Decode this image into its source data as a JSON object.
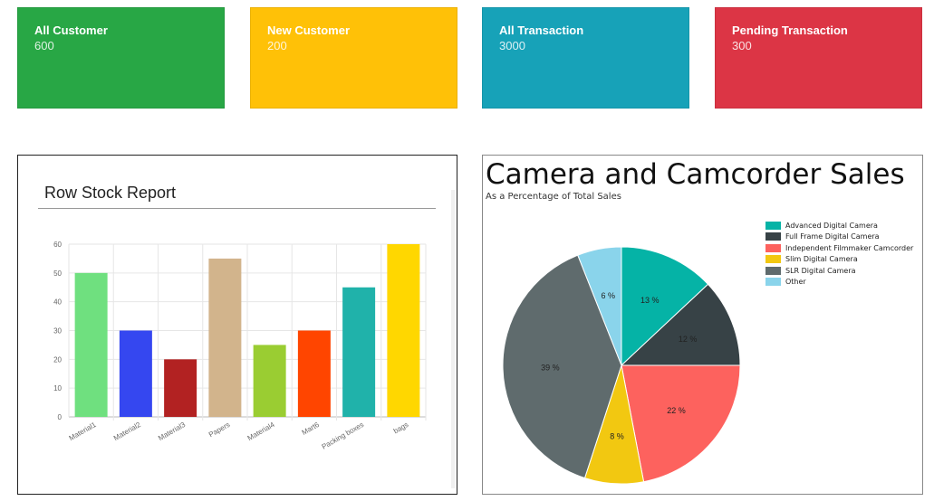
{
  "stats": [
    {
      "title": "All Customer",
      "value": "600",
      "color": "#28a745"
    },
    {
      "title": "New Customer",
      "value": "200",
      "color": "#ffc107"
    },
    {
      "title": "All Transaction",
      "value": "3000",
      "color": "#17a2b8"
    },
    {
      "title": "Pending Transaction",
      "value": "300",
      "color": "#dc3545"
    }
  ],
  "stock_report": {
    "title": "Row Stock Report"
  },
  "pie_section": {
    "title": "Camera and Camcorder Sales",
    "subtitle": "As a Percentage of Total Sales"
  },
  "chart_data": [
    {
      "type": "bar",
      "title": "Row Stock Report",
      "categories": [
        "Material1",
        "Material2",
        "Material3",
        "Papers",
        "Material4",
        "Mart6",
        "Packing boxes",
        "bags"
      ],
      "values": [
        50,
        30,
        20,
        55,
        25,
        30,
        45,
        60
      ],
      "colors": [
        "#6fe07f",
        "#3547f0",
        "#b22222",
        "#d2b48c",
        "#9acd32",
        "#ff4500",
        "#20b2aa",
        "#ffd700"
      ],
      "ylim": [
        0,
        60
      ],
      "yticks": [
        "0",
        "10",
        "20",
        "30",
        "40",
        "50",
        "60"
      ],
      "grid": true
    },
    {
      "type": "pie",
      "title": "Camera and Camcorder Sales",
      "subtitle": "As a Percentage of Total Sales",
      "legend": "right",
      "slices": [
        {
          "label": "Advanced Digital Camera",
          "value": 13,
          "display": "13 %",
          "color": "#05b3a6"
        },
        {
          "label": "Full Frame Digital Camera",
          "value": 12,
          "display": "12 %",
          "color": "#374246"
        },
        {
          "label": "Independent Filmmaker Camcorder",
          "value": 22,
          "display": "22 %",
          "color": "#fd625e"
        },
        {
          "label": "Slim Digital Camera",
          "value": 8,
          "display": "8 %",
          "color": "#f2c811"
        },
        {
          "label": "SLR Digital Camera",
          "value": 39,
          "display": "39 %",
          "color": "#5f6b6d"
        },
        {
          "label": "Other",
          "value": 6,
          "display": "6 %",
          "color": "#8ad4eb"
        }
      ]
    }
  ]
}
